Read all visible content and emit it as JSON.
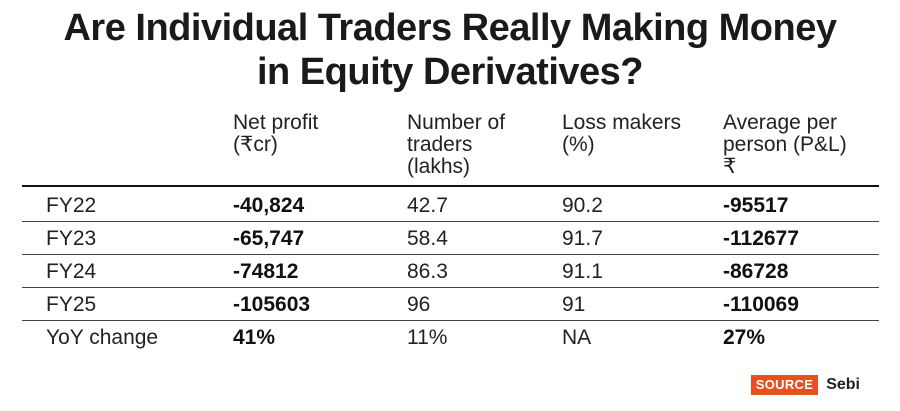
{
  "title_lines": [
    "Are Individual Traders Really Making Money",
    "in Equity Derivatives?"
  ],
  "columns": [
    {
      "lines": [
        "Net profit",
        "(₹cr)"
      ]
    },
    {
      "lines": [
        "Number of",
        "traders",
        "(lakhs)"
      ]
    },
    {
      "lines": [
        "Loss makers",
        "(%)"
      ]
    },
    {
      "lines": [
        "Average per",
        "person (P&L)",
        "₹"
      ]
    }
  ],
  "rows": [
    {
      "label": "FY22",
      "cells": [
        "-40,824",
        "42.7",
        "90.2",
        "-95517"
      ]
    },
    {
      "label": "FY23",
      "cells": [
        "-65,747",
        "58.4",
        "91.7",
        "-112677"
      ]
    },
    {
      "label": "FY24",
      "cells": [
        "-74812",
        "86.3",
        "91.1",
        "-86728"
      ]
    },
    {
      "label": "FY25",
      "cells": [
        "-105603",
        "96",
        "91",
        "-110069"
      ]
    },
    {
      "label": "YoY change",
      "cells": [
        "41%",
        "11%",
        "NA",
        "27%"
      ]
    }
  ],
  "source": {
    "badge": "SOURCE",
    "text": "Sebi"
  },
  "chart_data": {
    "type": "table",
    "title": "Are Individual Traders Really Making Money in Equity Derivatives?",
    "columns": [
      "",
      "Net profit (₹cr)",
      "Number of traders (lakhs)",
      "Loss makers (%)",
      "Average per person (P&L) ₹"
    ],
    "rows": [
      [
        "FY22",
        "-40,824",
        "42.7",
        "90.2",
        "-95517"
      ],
      [
        "FY23",
        "-65,747",
        "58.4",
        "91.7",
        "-112677"
      ],
      [
        "FY24",
        "-74812",
        "86.3",
        "91.1",
        "-86728"
      ],
      [
        "FY25",
        "-105603",
        "96",
        "91",
        "-110069"
      ],
      [
        "YoY change",
        "41%",
        "11%",
        "NA",
        "27%"
      ]
    ],
    "source": "Sebi"
  }
}
